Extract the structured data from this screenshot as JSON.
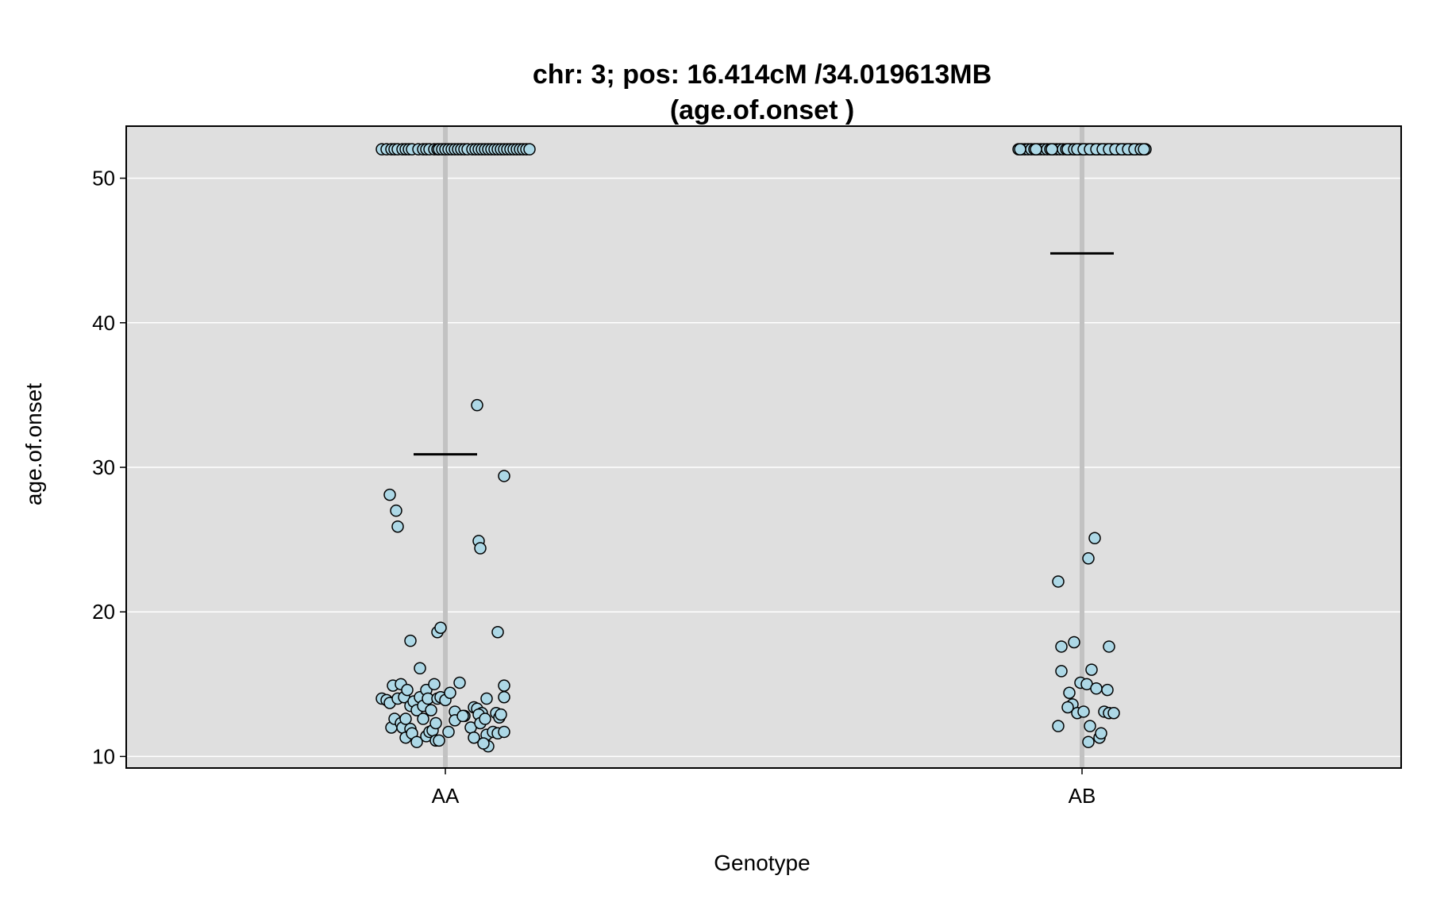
{
  "chart_data": {
    "type": "scatter",
    "title": "chr: 3; pos: 16.414cM /34.019613MB",
    "subtitle": "(age.of.onset )",
    "xlabel": "Genotype",
    "ylabel": "age.of.onset",
    "categories": [
      "AA",
      "AB"
    ],
    "ylim": [
      9.2,
      53.6
    ],
    "yticks": [
      10,
      20,
      30,
      40,
      50
    ],
    "grid": true,
    "colors": {
      "panel": "#dfdfdf",
      "point_fill": "#add8e6",
      "point_edge": "#000000",
      "category_line": "#c2c2c2",
      "grid": "#ffffff"
    },
    "series": [
      {
        "category": "AA",
        "mean": 30.9,
        "points": [
          [
            -0.4,
            52
          ],
          [
            -0.37,
            52
          ],
          [
            -0.34,
            52
          ],
          [
            -0.32,
            52
          ],
          [
            -0.3,
            52
          ],
          [
            -0.27,
            52
          ],
          [
            -0.25,
            52
          ],
          [
            -0.23,
            52
          ],
          [
            -0.21,
            52
          ],
          [
            -0.17,
            52
          ],
          [
            -0.14,
            52
          ],
          [
            -0.12,
            52
          ],
          [
            -0.1,
            52
          ],
          [
            -0.07,
            52
          ],
          [
            -0.05,
            52
          ],
          [
            -0.04,
            52
          ],
          [
            -0.02,
            52
          ],
          [
            0.0,
            52
          ],
          [
            0.02,
            52
          ],
          [
            0.04,
            52
          ],
          [
            0.06,
            52
          ],
          [
            0.08,
            52
          ],
          [
            0.1,
            52
          ],
          [
            0.12,
            52
          ],
          [
            0.14,
            52
          ],
          [
            0.17,
            52
          ],
          [
            0.19,
            52
          ],
          [
            0.21,
            52
          ],
          [
            0.23,
            52
          ],
          [
            0.25,
            52
          ],
          [
            0.27,
            52
          ],
          [
            0.29,
            52
          ],
          [
            0.31,
            52
          ],
          [
            0.33,
            52
          ],
          [
            0.35,
            52
          ],
          [
            0.37,
            52
          ],
          [
            0.39,
            52
          ],
          [
            0.41,
            52
          ],
          [
            0.43,
            52
          ],
          [
            0.45,
            52
          ],
          [
            0.47,
            52
          ],
          [
            0.49,
            52
          ],
          [
            0.51,
            52
          ],
          [
            0.53,
            52
          ],
          [
            -0.35,
            28.1
          ],
          [
            -0.31,
            27.0
          ],
          [
            -0.3,
            25.9
          ],
          [
            0.2,
            34.3
          ],
          [
            0.21,
            24.9
          ],
          [
            0.22,
            24.4
          ],
          [
            0.37,
            29.4
          ],
          [
            -0.22,
            18.0
          ],
          [
            -0.05,
            18.6
          ],
          [
            -0.03,
            18.9
          ],
          [
            0.33,
            18.6
          ],
          [
            -0.16,
            16.1
          ],
          [
            -0.4,
            14.0
          ],
          [
            -0.37,
            13.9
          ],
          [
            -0.35,
            13.7
          ],
          [
            -0.33,
            14.9
          ],
          [
            -0.3,
            14.0
          ],
          [
            -0.28,
            15.0
          ],
          [
            -0.26,
            14.1
          ],
          [
            -0.24,
            14.6
          ],
          [
            -0.22,
            13.5
          ],
          [
            -0.2,
            13.8
          ],
          [
            -0.18,
            13.2
          ],
          [
            -0.16,
            14.1
          ],
          [
            -0.14,
            13.5
          ],
          [
            -0.12,
            14.6
          ],
          [
            -0.11,
            14.0
          ],
          [
            -0.09,
            13.2
          ],
          [
            -0.07,
            15.0
          ],
          [
            -0.05,
            14.0
          ],
          [
            -0.03,
            14.1
          ],
          [
            0.0,
            13.9
          ],
          [
            0.03,
            14.4
          ],
          [
            0.06,
            13.1
          ],
          [
            0.09,
            15.1
          ],
          [
            0.12,
            12.8
          ],
          [
            0.16,
            12.0
          ],
          [
            0.18,
            13.4
          ],
          [
            0.2,
            13.3
          ],
          [
            0.23,
            13.0
          ],
          [
            0.26,
            14.0
          ],
          [
            0.32,
            13.0
          ],
          [
            0.34,
            12.7
          ],
          [
            0.37,
            14.1
          ],
          [
            0.37,
            14.9
          ],
          [
            -0.34,
            12.0
          ],
          [
            -0.32,
            12.6
          ],
          [
            -0.28,
            12.3
          ],
          [
            -0.27,
            12.0
          ],
          [
            -0.25,
            12.6
          ],
          [
            -0.25,
            11.3
          ],
          [
            -0.22,
            11.9
          ],
          [
            -0.21,
            11.6
          ],
          [
            -0.18,
            11.0
          ],
          [
            -0.14,
            12.6
          ],
          [
            -0.12,
            11.4
          ],
          [
            -0.1,
            11.7
          ],
          [
            -0.08,
            11.8
          ],
          [
            -0.06,
            12.3
          ],
          [
            -0.06,
            11.1
          ],
          [
            -0.04,
            11.1
          ],
          [
            0.02,
            11.7
          ],
          [
            0.06,
            12.5
          ],
          [
            0.11,
            12.8
          ],
          [
            0.18,
            11.3
          ],
          [
            0.21,
            12.9
          ],
          [
            0.22,
            12.3
          ],
          [
            0.25,
            12.6
          ],
          [
            0.26,
            11.5
          ],
          [
            0.27,
            10.7
          ],
          [
            0.3,
            11.7
          ],
          [
            0.33,
            11.6
          ],
          [
            0.35,
            12.9
          ],
          [
            0.37,
            11.7
          ],
          [
            0.24,
            10.9
          ]
        ]
      },
      {
        "category": "AB",
        "mean": 44.8,
        "points": [
          [
            -0.4,
            52
          ],
          [
            -0.38,
            52
          ],
          [
            -0.36,
            52
          ],
          [
            -0.34,
            52
          ],
          [
            -0.32,
            52
          ],
          [
            -0.3,
            52
          ],
          [
            -0.28,
            52
          ],
          [
            -0.26,
            52
          ],
          [
            -0.24,
            52
          ],
          [
            -0.22,
            52
          ],
          [
            -0.2,
            52
          ],
          [
            -0.18,
            52
          ],
          [
            -0.16,
            52
          ],
          [
            -0.14,
            52
          ],
          [
            -0.12,
            52
          ],
          [
            -0.1,
            52
          ],
          [
            -0.08,
            52
          ],
          [
            -0.06,
            52
          ],
          [
            -0.04,
            52
          ],
          [
            -0.02,
            52
          ],
          [
            0.0,
            52
          ],
          [
            0.02,
            52
          ],
          [
            0.04,
            52
          ],
          [
            0.06,
            52
          ],
          [
            0.08,
            52
          ],
          [
            0.1,
            52
          ],
          [
            0.12,
            52
          ],
          [
            0.14,
            52
          ],
          [
            0.16,
            52
          ],
          [
            0.18,
            52
          ],
          [
            0.2,
            52
          ],
          [
            0.22,
            52
          ],
          [
            0.24,
            52
          ],
          [
            0.26,
            52
          ],
          [
            0.28,
            52
          ],
          [
            0.3,
            52
          ],
          [
            0.32,
            52
          ],
          [
            0.34,
            52
          ],
          [
            0.36,
            52
          ],
          [
            0.38,
            52
          ],
          [
            0.4,
            52
          ],
          [
            -0.39,
            52
          ],
          [
            -0.29,
            52
          ],
          [
            -0.19,
            52
          ],
          [
            -0.09,
            52
          ],
          [
            -0.05,
            52
          ],
          [
            -0.03,
            52
          ],
          [
            0.01,
            52
          ],
          [
            0.05,
            52
          ],
          [
            0.09,
            52
          ],
          [
            0.13,
            52
          ],
          [
            0.17,
            52
          ],
          [
            0.21,
            52
          ],
          [
            0.25,
            52
          ],
          [
            0.29,
            52
          ],
          [
            0.33,
            52
          ],
          [
            0.37,
            52
          ],
          [
            0.39,
            52
          ],
          [
            -0.15,
            22.1
          ],
          [
            -0.13,
            17.6
          ],
          [
            -0.13,
            15.9
          ],
          [
            -0.05,
            17.9
          ],
          [
            0.04,
            23.7
          ],
          [
            0.08,
            25.1
          ],
          [
            0.17,
            17.6
          ],
          [
            -0.08,
            14.4
          ],
          [
            -0.06,
            13.6
          ],
          [
            -0.09,
            13.4
          ],
          [
            -0.03,
            13.0
          ],
          [
            -0.01,
            15.1
          ],
          [
            0.01,
            13.1
          ],
          [
            0.03,
            15.0
          ],
          [
            0.06,
            16.0
          ],
          [
            0.09,
            14.7
          ],
          [
            0.14,
            13.1
          ],
          [
            0.16,
            14.6
          ],
          [
            0.17,
            13.0
          ],
          [
            0.2,
            13.0
          ],
          [
            -0.15,
            12.1
          ],
          [
            0.04,
            11.0
          ],
          [
            0.05,
            12.1
          ],
          [
            0.11,
            11.3
          ],
          [
            0.12,
            11.6
          ]
        ]
      }
    ]
  }
}
